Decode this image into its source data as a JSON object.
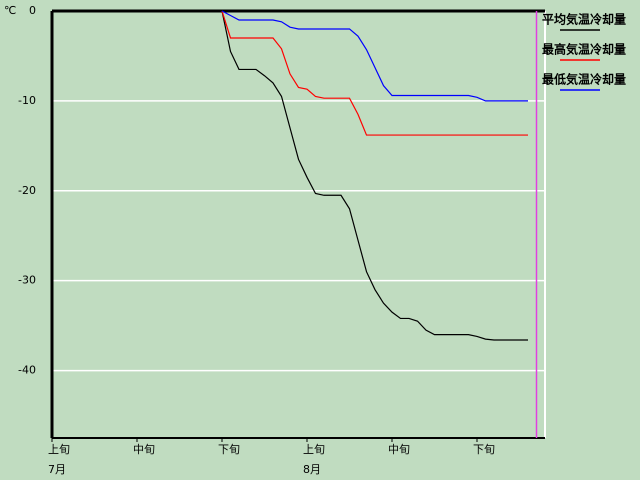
{
  "chart_data": {
    "type": "line",
    "y_label": "℃",
    "x": [
      20,
      21,
      22,
      23,
      24,
      25,
      26,
      27,
      28,
      29,
      30,
      31,
      32,
      33,
      34,
      35,
      36,
      37,
      38,
      39,
      40,
      41,
      42,
      43,
      44,
      45,
      46,
      47,
      48,
      49,
      50,
      51,
      52,
      53,
      54,
      55,
      56
    ],
    "xlim": [
      0,
      58
    ],
    "xticks": [
      {
        "value": 0,
        "label": "上旬"
      },
      {
        "value": 10,
        "label": "中旬"
      },
      {
        "value": 20,
        "label": "下旬"
      },
      {
        "value": 30,
        "label": "上旬"
      },
      {
        "value": 40,
        "label": "中旬"
      },
      {
        "value": 50,
        "label": "下旬"
      }
    ],
    "month_labels": [
      {
        "value": 0,
        "label": "7月"
      },
      {
        "value": 30,
        "label": "8月"
      }
    ],
    "marker_x": 57,
    "marker_color": "#e040e0",
    "ylim": [
      -47.5,
      0
    ],
    "yticks": [
      0,
      -10,
      -20,
      -30,
      -40
    ],
    "grid": true,
    "series": [
      {
        "name": "平均気温冷却量",
        "color": "#000000",
        "values": [
          0,
          -4.5,
          -6.5,
          -6.5,
          -6.5,
          -7.2,
          -8,
          -9.5,
          -13,
          -16.5,
          -18.5,
          -20.3,
          -20.5,
          -20.5,
          -20.5,
          -22,
          -25.5,
          -29,
          -31,
          -32.5,
          -33.5,
          -34.2,
          -34.2,
          -34.5,
          -35.5,
          -36,
          -36,
          -36,
          -36,
          -36,
          -36.2,
          -36.5,
          -36.6,
          -36.6,
          -36.6,
          -36.6,
          -36.6
        ]
      },
      {
        "name": "最高気温冷却量",
        "color": "#ff0000",
        "values": [
          0,
          -3,
          -3,
          -3,
          -3,
          -3,
          -3,
          -4.2,
          -7,
          -8.5,
          -8.7,
          -9.5,
          -9.7,
          -9.7,
          -9.7,
          -9.7,
          -11.5,
          -13.8,
          -13.8,
          -13.8,
          -13.8,
          -13.8,
          -13.8,
          -13.8,
          -13.8,
          -13.8,
          -13.8,
          -13.8,
          -13.8,
          -13.8,
          -13.8,
          -13.8,
          -13.8,
          -13.8,
          -13.8,
          -13.8,
          -13.8
        ]
      },
      {
        "name": "最低気温冷却量",
        "color": "#0000ff",
        "values": [
          0,
          -0.5,
          -1,
          -1,
          -1,
          -1,
          -1,
          -1.2,
          -1.8,
          -2,
          -2,
          -2,
          -2,
          -2,
          -2,
          -2,
          -2.8,
          -4.3,
          -6.3,
          -8.3,
          -9.4,
          -9.4,
          -9.4,
          -9.4,
          -9.4,
          -9.4,
          -9.4,
          -9.4,
          -9.4,
          -9.4,
          -9.6,
          -10,
          -10,
          -10,
          -10,
          -10,
          -10
        ]
      }
    ]
  }
}
